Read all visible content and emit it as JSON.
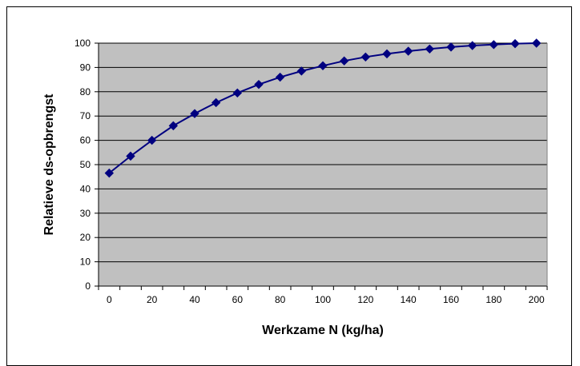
{
  "chart_data": {
    "type": "line",
    "title": "",
    "xlabel": "Werkzame N (kg/ha)",
    "ylabel": "Relatieve ds-opbrengst",
    "xlim": [
      -5,
      205
    ],
    "ylim": [
      0,
      100
    ],
    "x_ticks": [
      0,
      20,
      40,
      60,
      80,
      100,
      120,
      140,
      160,
      180,
      200
    ],
    "y_ticks": [
      0,
      10,
      20,
      30,
      40,
      50,
      60,
      70,
      80,
      90,
      100
    ],
    "grid": "horizontal",
    "legend": "none",
    "x": [
      0,
      10,
      20,
      30,
      40,
      50,
      60,
      70,
      80,
      90,
      100,
      110,
      120,
      130,
      140,
      150,
      160,
      170,
      180,
      190,
      200
    ],
    "series": [
      {
        "values": [
          46.5,
          53.5,
          60,
          66,
          71,
          75.5,
          79.5,
          83,
          86,
          88.5,
          90.7,
          92.7,
          94.3,
          95.6,
          96.7,
          97.6,
          98.4,
          99,
          99.4,
          99.8,
          100
        ]
      }
    ],
    "colors": {
      "plot_area": "#c0c0c0",
      "line": "#000080",
      "marker": "#000080",
      "gridline": "#000000"
    },
    "marker": "diamond"
  }
}
